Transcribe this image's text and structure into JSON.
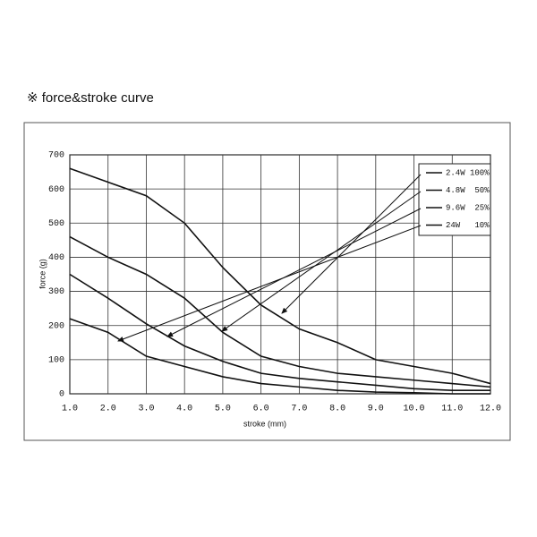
{
  "chart_data": {
    "type": "line",
    "title": "※  force&stroke curve",
    "x_label": "stroke (mm)",
    "y_label": "force (g)",
    "x": [
      1,
      2,
      3,
      4,
      5,
      6,
      7,
      8,
      9,
      10,
      11,
      12
    ],
    "series": [
      {
        "name": "2.4W 100%",
        "color": "#111111",
        "values": [
          660,
          620,
          580,
          500,
          370,
          260,
          190,
          150,
          100,
          80,
          60,
          30
        ]
      },
      {
        "name": "4.8W  50%",
        "color": "#111111",
        "values": [
          460,
          400,
          350,
          280,
          180,
          110,
          80,
          60,
          50,
          40,
          30,
          20
        ]
      },
      {
        "name": "9.6W  25%",
        "color": "#111111",
        "values": [
          350,
          280,
          205,
          140,
          95,
          60,
          45,
          35,
          25,
          15,
          10,
          10
        ]
      },
      {
        "name": "24W   10%",
        "color": "#111111",
        "values": [
          220,
          180,
          110,
          80,
          50,
          30,
          20,
          10,
          5,
          3,
          0,
          0
        ]
      }
    ],
    "xlim": [
      1,
      12
    ],
    "xticks": [
      {
        "value": 1,
        "label": "1.0"
      },
      {
        "value": 2,
        "label": "2.0"
      },
      {
        "value": 3,
        "label": "3.0"
      },
      {
        "value": 4,
        "label": "4.0"
      },
      {
        "value": 5,
        "label": "5.0"
      },
      {
        "value": 6,
        "label": "6.0"
      },
      {
        "value": 7,
        "label": "7.0"
      },
      {
        "value": 8,
        "label": "8.0"
      },
      {
        "value": 9,
        "label": "9.0"
      },
      {
        "value": 10,
        "label": "10.0"
      },
      {
        "value": 11,
        "label": "11.0"
      },
      {
        "value": 12,
        "label": "12.0"
      }
    ],
    "ylim": [
      0,
      700
    ],
    "yticks": [
      0,
      100,
      200,
      300,
      400,
      500,
      600,
      700
    ],
    "grid": true,
    "legend": "upper right"
  }
}
